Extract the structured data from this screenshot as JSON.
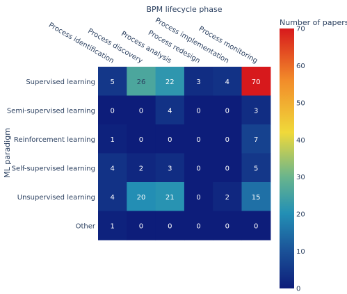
{
  "chart_data": {
    "type": "heatmap",
    "title": "BPM lifecycle phase",
    "xlabel": "BPM lifecycle phase",
    "ylabel": "ML paradigm",
    "x_categories": [
      "Process identification",
      "Process discovery",
      "Process analysis",
      "Process redesign",
      "Process implementation",
      "Process monitoring"
    ],
    "y_categories": [
      "Supervised learning",
      "Semi-supervised learning",
      "Reinforcement learning",
      "Self-supervised learning",
      "Unsupervised learning",
      "Other"
    ],
    "z": [
      [
        5,
        26,
        22,
        3,
        4,
        70
      ],
      [
        0,
        0,
        4,
        0,
        0,
        3
      ],
      [
        1,
        0,
        0,
        0,
        0,
        7
      ],
      [
        4,
        2,
        3,
        0,
        0,
        5
      ],
      [
        4,
        20,
        21,
        0,
        2,
        15
      ],
      [
        1,
        0,
        0,
        0,
        0,
        0
      ]
    ],
    "colorbar": {
      "title": "Number of papers",
      "range": [
        0,
        70
      ],
      "ticks": [
        0,
        10,
        20,
        30,
        40,
        50,
        60,
        70
      ],
      "colorscale": [
        "#0d1d7a",
        "#1b5499",
        "#2390b5",
        "#6ab58c",
        "#f0d93a",
        "#f28c2a",
        "#d7191c"
      ]
    },
    "xaxis_side": "top",
    "grid": false
  }
}
